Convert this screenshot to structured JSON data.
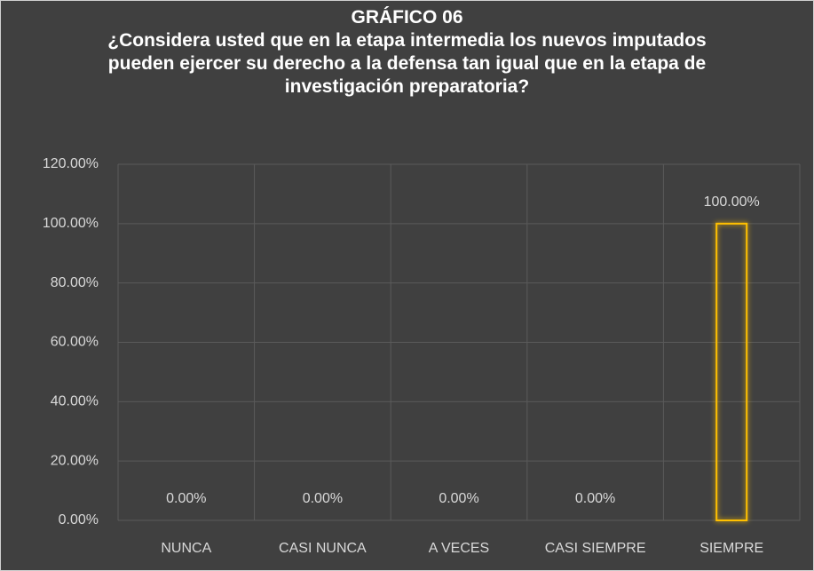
{
  "chart_data": {
    "type": "bar",
    "title": "GRÁFICO  06",
    "subtitle": "¿Considera usted que en la etapa intermedia los nuevos imputados pueden ejercer su derecho a la defensa tan igual que en la etapa de investigación preparatoria?",
    "categories": [
      "NUNCA",
      "CASI NUNCA",
      "A VECES",
      "CASI SIEMPRE",
      "SIEMPRE"
    ],
    "values": [
      0,
      0,
      0,
      0,
      100
    ],
    "value_labels": [
      "0.00%",
      "0.00%",
      "0.00%",
      "0.00%",
      "100.00%"
    ],
    "color": "#ffc000",
    "ylim": [
      0,
      120
    ],
    "yticks": [
      {
        "value": 0,
        "label": "0.00%"
      },
      {
        "value": 20,
        "label": "20.00%"
      },
      {
        "value": 40,
        "label": "40.00%"
      },
      {
        "value": 60,
        "label": "60.00%"
      },
      {
        "value": 80,
        "label": "80.00%"
      },
      {
        "value": 100,
        "label": "100.00%"
      },
      {
        "value": 120,
        "label": "120.00%"
      }
    ],
    "grid": true
  }
}
